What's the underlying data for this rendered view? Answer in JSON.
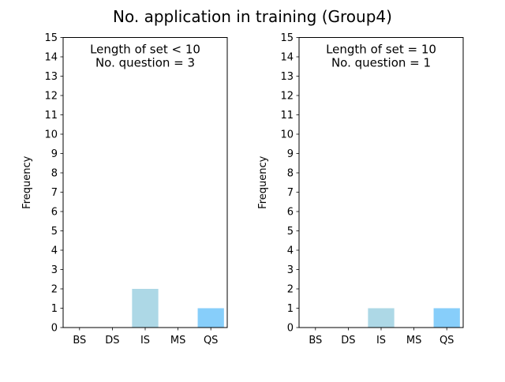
{
  "figure": {
    "title": "No. application in training (Group4)"
  },
  "chart_data": [
    {
      "type": "bar",
      "annotation_lines": [
        "Length of set < 10",
        "No. question = 3"
      ],
      "ylabel": "Frequency",
      "xlabel": "",
      "categories": [
        "BS",
        "DS",
        "IS",
        "MS",
        "QS"
      ],
      "values": [
        0,
        0,
        2,
        0,
        1
      ],
      "bar_colors": [
        "#add8e6",
        "#add8e6",
        "#add8e6",
        "#87cefa",
        "#87cefa"
      ],
      "ylim": [
        0,
        15
      ],
      "yticks": [
        0,
        1,
        2,
        3,
        4,
        5,
        6,
        7,
        8,
        9,
        10,
        11,
        12,
        13,
        14,
        15
      ],
      "grid": false,
      "legend": "none"
    },
    {
      "type": "bar",
      "annotation_lines": [
        "Length of set = 10",
        "No. question = 1"
      ],
      "ylabel": "Frequency",
      "xlabel": "",
      "categories": [
        "BS",
        "DS",
        "IS",
        "MS",
        "QS"
      ],
      "values": [
        0,
        0,
        1,
        0,
        1
      ],
      "bar_colors": [
        "#add8e6",
        "#add8e6",
        "#add8e6",
        "#87cefa",
        "#87cefa"
      ],
      "ylim": [
        0,
        15
      ],
      "yticks": [
        0,
        1,
        2,
        3,
        4,
        5,
        6,
        7,
        8,
        9,
        10,
        11,
        12,
        13,
        14,
        15
      ],
      "grid": false,
      "legend": "none"
    }
  ]
}
